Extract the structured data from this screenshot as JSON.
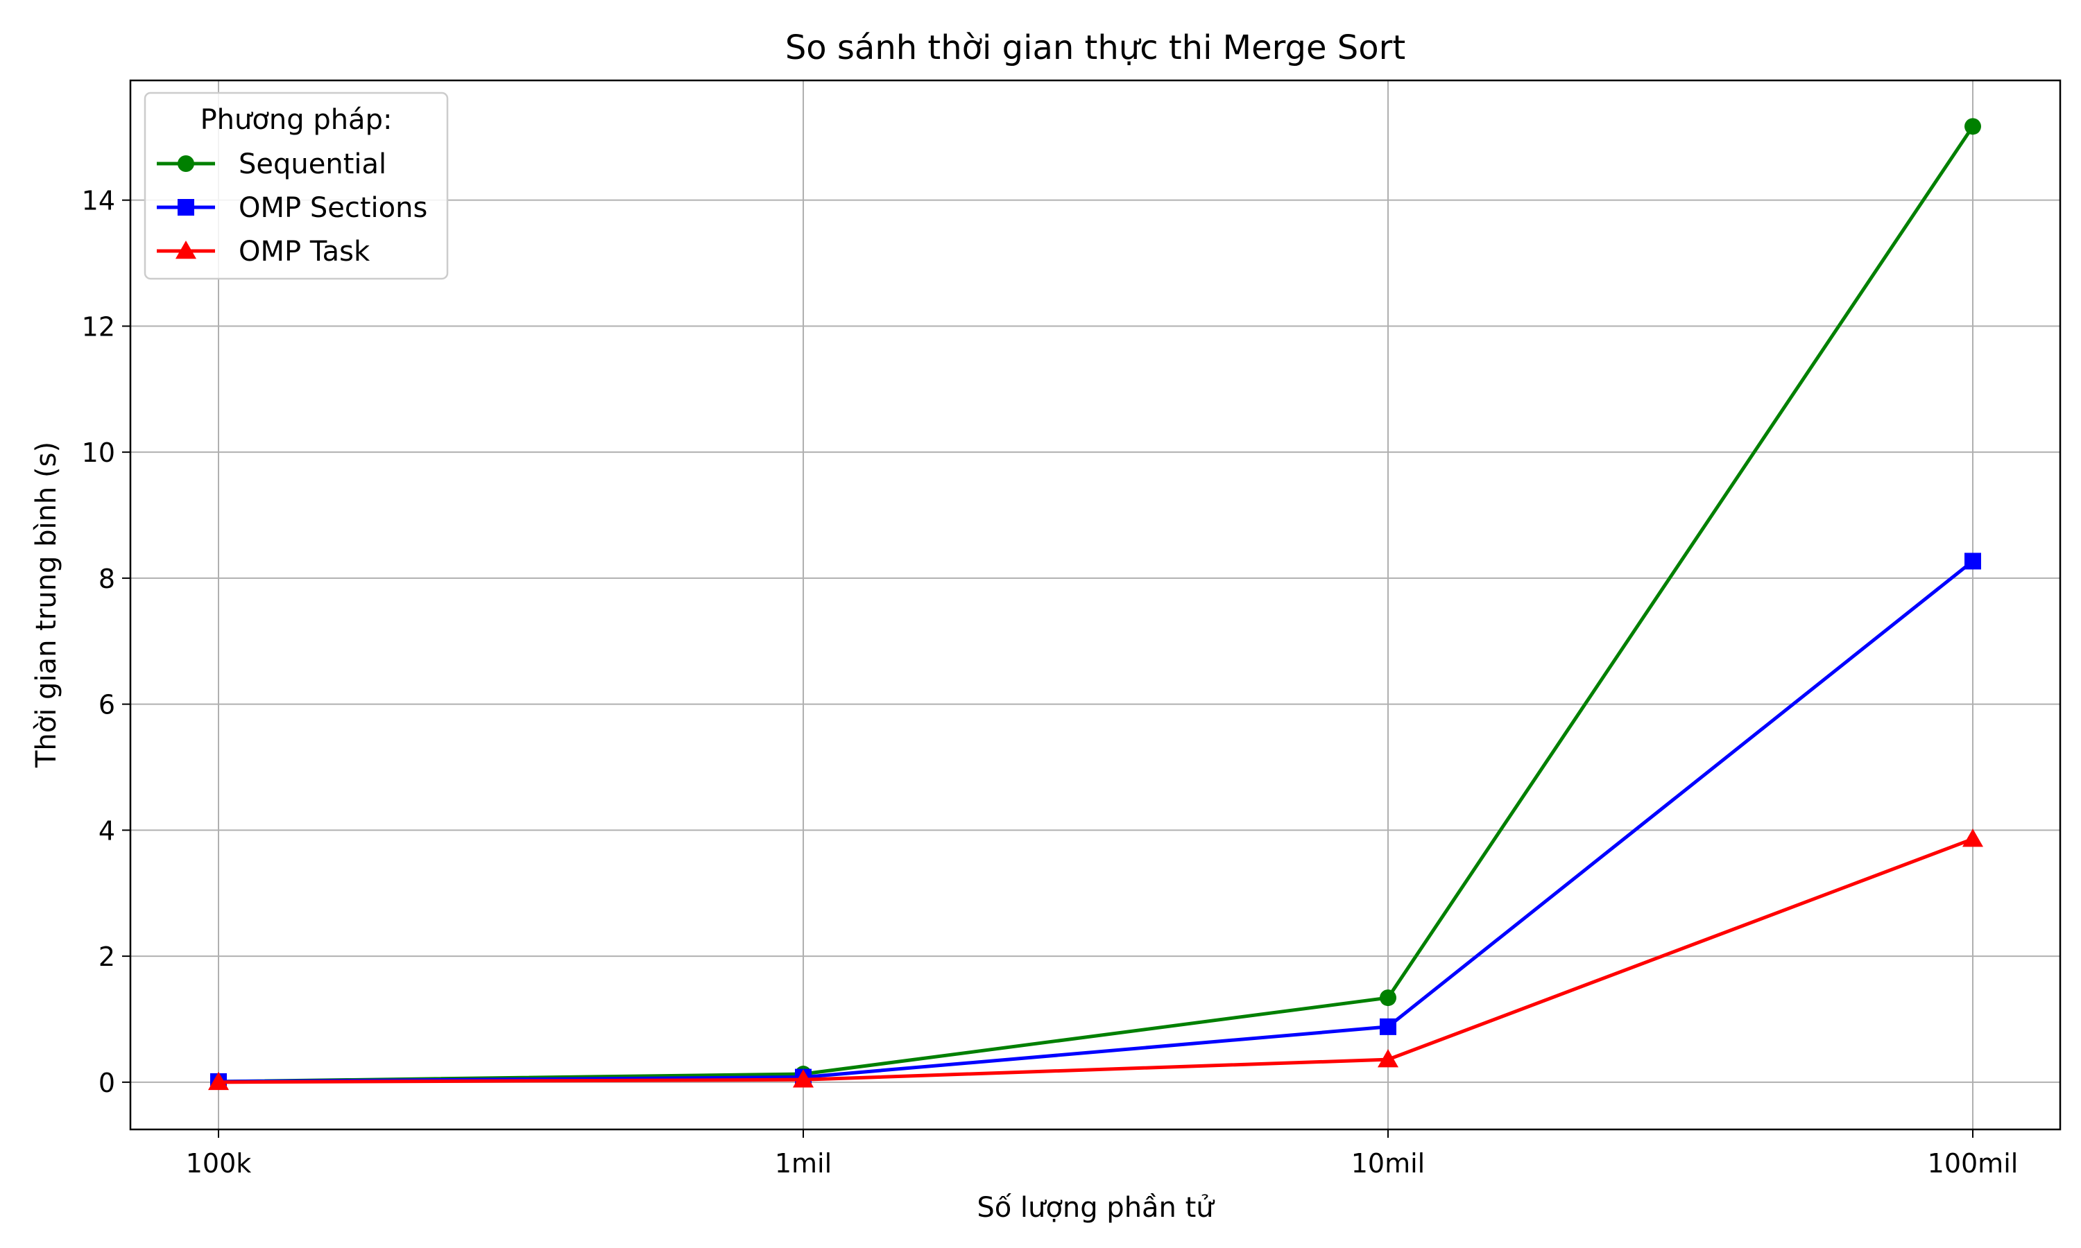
{
  "chart_data": {
    "type": "line",
    "title": "So sánh thời gian thực thi Merge Sort",
    "xlabel": "Số lượng phần tử",
    "ylabel": "Thời gian trung bình (s)",
    "categories": [
      "100k",
      "1mil",
      "10mil",
      "100mil"
    ],
    "ylim": [
      -0.75,
      15.9
    ],
    "yticks": [
      0,
      2,
      4,
      6,
      8,
      10,
      12,
      14
    ],
    "grid": true,
    "legend": {
      "title": "Phương pháp:",
      "placement": "top-left"
    },
    "series": [
      {
        "name": "Sequential",
        "color": "#008000",
        "marker": "circle",
        "values": [
          0.01,
          0.13,
          1.34,
          15.17
        ]
      },
      {
        "name": "OMP Sections",
        "color": "#0000ff",
        "marker": "square",
        "values": [
          0.01,
          0.08,
          0.88,
          8.27
        ]
      },
      {
        "name": "OMP Task",
        "color": "#ff0000",
        "marker": "triangle",
        "values": [
          0.0,
          0.04,
          0.36,
          3.86
        ]
      }
    ]
  }
}
